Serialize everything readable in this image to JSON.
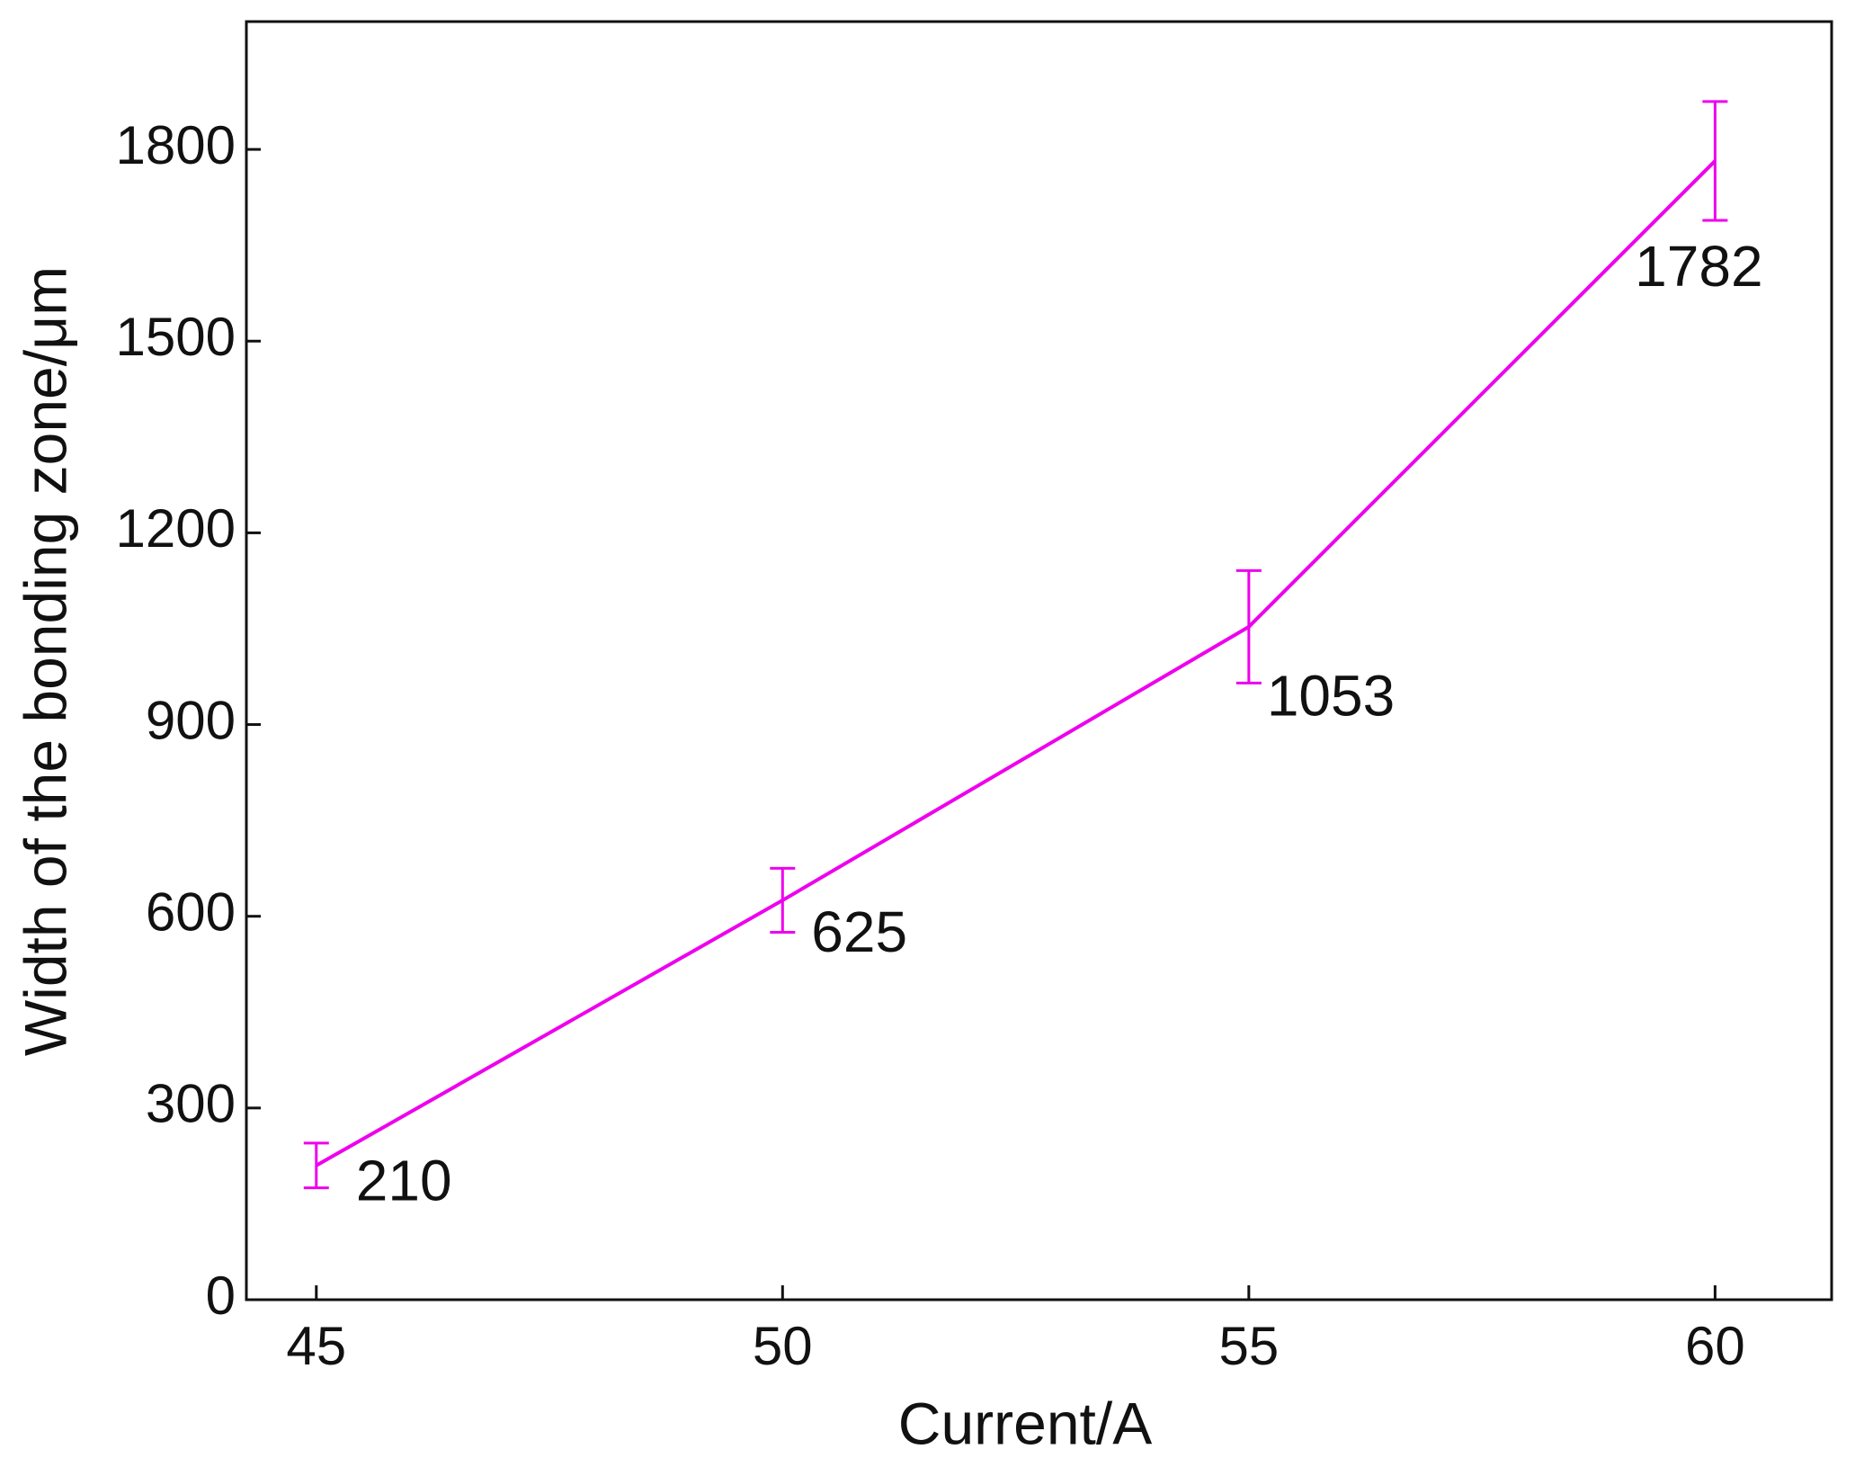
{
  "chart_data": {
    "type": "line",
    "xlabel": "Current/A",
    "ylabel": "Width of the bonding zone/μm",
    "x": [
      45,
      50,
      55,
      60
    ],
    "series": [
      {
        "color": "#ee00ee",
        "values": [
          210,
          625,
          1053,
          1782
        ],
        "errors": [
          35,
          50,
          88,
          93
        ]
      }
    ],
    "xlim": [
      44.25,
      61.25
    ],
    "xticks": [
      45,
      50,
      55,
      60
    ],
    "ylim": [
      0,
      2000
    ],
    "yticks": [
      0,
      300,
      600,
      900,
      1200,
      1500,
      1800
    ],
    "grid": false
  }
}
